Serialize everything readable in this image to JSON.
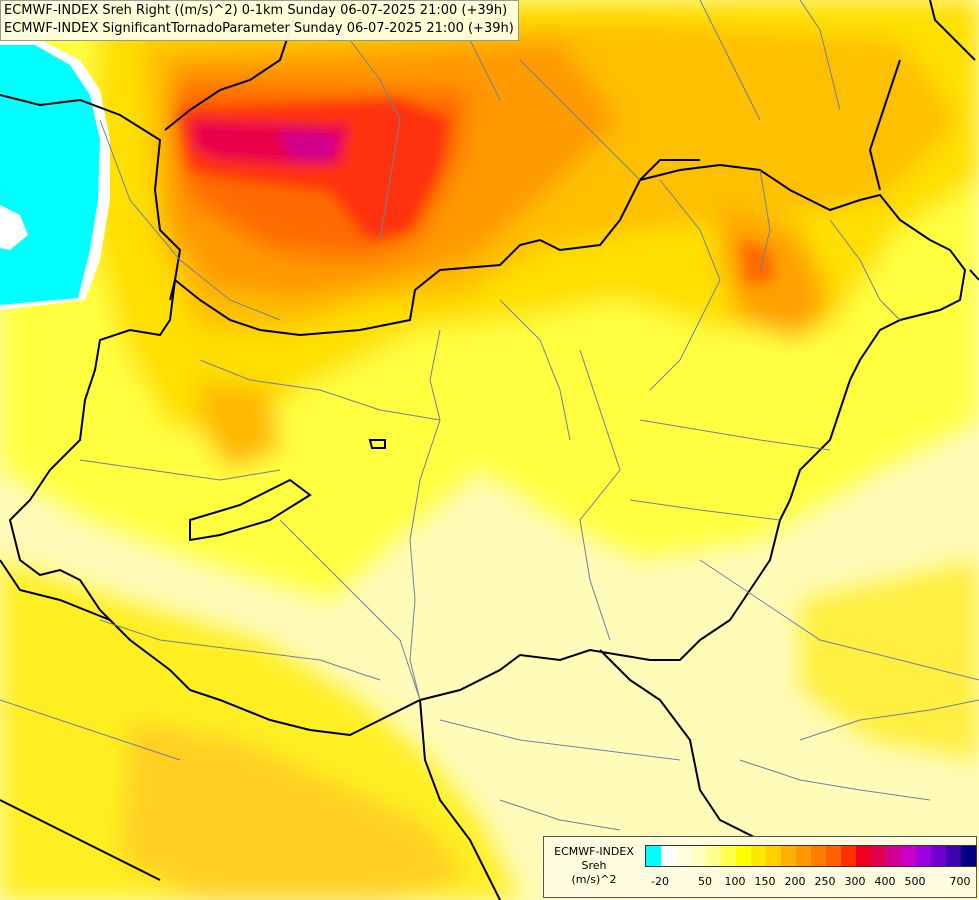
{
  "titles": [
    "ECMWF-INDEX Sreh Right ((m/s)^2) 0-1km Sunday 06-07-2025 21:00 (+39h)",
    "ECMWF-INDEX SignificantTornadoParameter Sunday 06-07-2025 21:00 (+39h)"
  ],
  "legend": {
    "line1": "ECMWF-INDEX",
    "line2": "Sreh",
    "line3": "(m/s)^2",
    "colors": [
      "#00ffff",
      "#ffffff",
      "#ffffe0",
      "#ffffc0",
      "#ffff90",
      "#ffff50",
      "#ffff00",
      "#ffe800",
      "#ffd000",
      "#ffb000",
      "#ff9800",
      "#ff7e00",
      "#ff6000",
      "#ff3000",
      "#f00020",
      "#e00050",
      "#d00090",
      "#c800c8",
      "#a000e0",
      "#7000d0",
      "#4000b0",
      "#000080"
    ],
    "tick_labels": [
      "-20",
      "50",
      "100",
      "150",
      "200",
      "250",
      "300",
      "400",
      "500",
      "700"
    ]
  }
}
